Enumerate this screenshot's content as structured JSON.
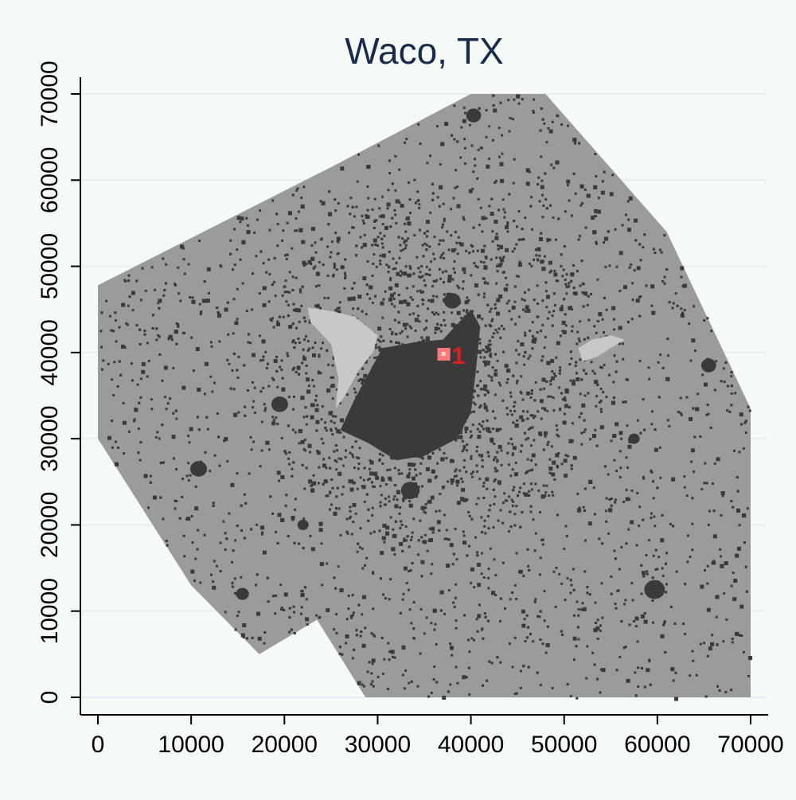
{
  "chart_data": {
    "type": "heatmap",
    "title": "Waco, TX",
    "xlabel": "",
    "ylabel": "",
    "xlim": [
      0,
      70000
    ],
    "ylim": [
      0,
      70000
    ],
    "x_ticks": [
      0,
      10000,
      20000,
      30000,
      40000,
      50000,
      60000,
      70000
    ],
    "y_ticks": [
      0,
      10000,
      20000,
      30000,
      40000,
      50000,
      60000,
      70000
    ],
    "grid": "horizontal",
    "study_area_boundary": [
      [
        0,
        47800
      ],
      [
        25000,
        61500
      ],
      [
        40000,
        70000
      ],
      [
        48000,
        70000
      ],
      [
        61000,
        54000
      ],
      [
        70000,
        33500
      ],
      [
        70000,
        0
      ],
      [
        28700,
        0
      ],
      [
        23500,
        9000
      ],
      [
        17300,
        5000
      ],
      [
        10000,
        13000
      ],
      [
        0,
        30000
      ]
    ],
    "urban_core": [
      [
        27500,
        34500
      ],
      [
        29000,
        37500
      ],
      [
        30500,
        40500
      ],
      [
        34000,
        41200
      ],
      [
        37000,
        41500
      ],
      [
        40000,
        45000
      ],
      [
        41000,
        43000
      ],
      [
        40500,
        37500
      ],
      [
        40000,
        33000
      ],
      [
        38500,
        30000
      ],
      [
        35000,
        28000
      ],
      [
        32000,
        27500
      ],
      [
        29000,
        29500
      ],
      [
        26000,
        31000
      ]
    ],
    "lake_polygons": [
      [
        [
          22500,
          45200
        ],
        [
          25000,
          44800
        ],
        [
          27500,
          44200
        ],
        [
          30000,
          42000
        ],
        [
          29500,
          40000
        ],
        [
          28000,
          38000
        ],
        [
          26500,
          35000
        ],
        [
          25500,
          33500
        ],
        [
          25800,
          37000
        ],
        [
          25000,
          41000
        ],
        [
          22800,
          43500
        ]
      ],
      [
        [
          51500,
          40500
        ],
        [
          53000,
          41500
        ],
        [
          55000,
          42000
        ],
        [
          56500,
          41500
        ],
        [
          55000,
          40500
        ],
        [
          53500,
          39500
        ],
        [
          52000,
          39000
        ]
      ]
    ],
    "settlement_clusters": [
      {
        "x": 10800,
        "y": 26500,
        "r": 900
      },
      {
        "x": 40300,
        "y": 67500,
        "r": 800
      },
      {
        "x": 59700,
        "y": 12500,
        "r": 1100
      },
      {
        "x": 65500,
        "y": 38500,
        "r": 800
      },
      {
        "x": 19500,
        "y": 34000,
        "r": 900
      },
      {
        "x": 28500,
        "y": 31000,
        "r": 900
      },
      {
        "x": 33500,
        "y": 24000,
        "r": 1000
      },
      {
        "x": 38000,
        "y": 46000,
        "r": 900
      },
      {
        "x": 15500,
        "y": 12000,
        "r": 700
      },
      {
        "x": 57500,
        "y": 30000,
        "r": 600
      },
      {
        "x": 22000,
        "y": 20000,
        "r": 600
      }
    ],
    "point_label": "1",
    "highlight_point": {
      "x": 37100,
      "y": 39800
    },
    "colors": {
      "background": "#f5faf7",
      "study_area": "#9b9b9b",
      "developed": "#3a3a3a",
      "water": "#c8c8c8",
      "highlight": "#ff7b7b",
      "label": "#e02020",
      "title": "#1a2a4a",
      "axis": "#000000",
      "grid": "#e6eef0"
    }
  }
}
